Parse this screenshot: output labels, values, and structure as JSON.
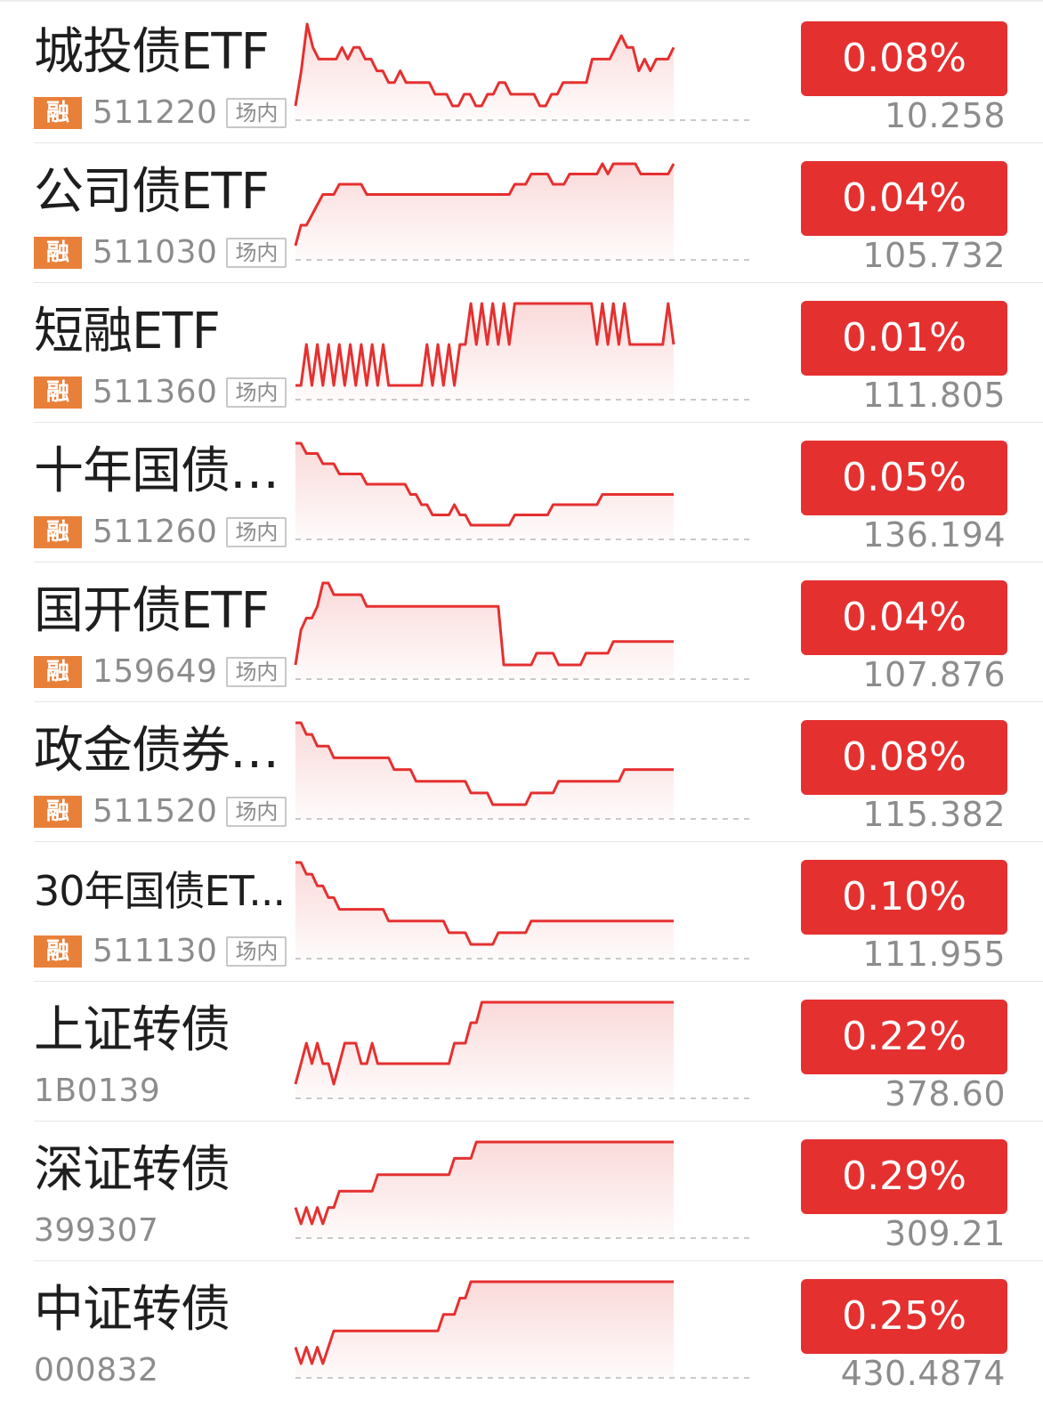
{
  "accent": "#e53030",
  "badge_color": "#e8803a",
  "rows": [
    {
      "name": "城投债ETF",
      "code": "511220",
      "badge": "融",
      "market_tag": "场内",
      "change": "0.08%",
      "price": "10.258",
      "spark": "2 5 9 7 6 6 6 6 7 6 7 7 6 6 5 5 4 4 5 4 4 4 4 4 3 3 3 2 2 3 3 2 2 3 3 4 4 3 3 3 3 3 2 2 3 3 4 4 4 4 4 6 6 6 6 7 8 7 7 5 6 5 6 6 6 7"
    },
    {
      "name": "公司债ETF",
      "code": "511030",
      "badge": "融",
      "market_tag": "场内",
      "change": "0.04%",
      "price": "105.732",
      "spark": "1 3 3 4 5 6 6 6 7 7 7 7 7 6 6 6 6 6 6 6 6 6 6 6 6 6 6 6 6 6 6 6 6 6 6 6 6 6 6 6 7 7 7 8 8 8 8 7 7 7 8 8 8 8 8 8 9 8 9 9 9 9 9 8 8 8 8 8 8 9"
    },
    {
      "name": "短融ETF",
      "code": "511360",
      "badge": "融",
      "market_tag": "场内",
      "change": "0.01%",
      "price": "111.805",
      "spark": "5 5 6 5 6 5 6 5 6 5 6 5 6 5 6 5 6 5 5 5 5 5 5 5 6 5 6 5 6 5 6 6 7 6 7 6 7 6 7 6 7 7 7 7 7 7 7 7 7 7 7 7 7 7 7 6 7 6 7 6 7 6 6 6 6 6 6 6 7 6"
    },
    {
      "name": "十年国债ETF",
      "code": "511260",
      "badge": "融",
      "market_tag": "场内",
      "change": "0.05%",
      "price": "136.194",
      "spark": "9 9 8 8 8 7 7 7 6 6 6 6 6 5 5 5 5 5 5 5 5 4 4 3 3 2 2 2 2 3 2 2 1 1 1 1 1 1 1 1 2 2 2 2 2 2 2 3 3 3 3 3 3 3 3 3 4 4 4 4 4 4 4 4 4 4 4 4 4 4"
    },
    {
      "name": "国开债ETF",
      "code": "159649",
      "badge": "融",
      "market_tag": "场内",
      "change": "0.04%",
      "price": "107.876",
      "spark": "2 5 6 6 7 9 9 8 8 8 8 8 8 7 7 7 7 7 7 7 7 7 7 7 7 7 7 7 7 7 7 7 7 7 7 7 7 7 2 2 2 2 2 2 3 3 3 3 2 2 2 2 2 3 3 3 3 3 4 4 4 4 4 4 4 4 4 4 4 4"
    },
    {
      "name": "政金债券ETF",
      "code": "511520",
      "badge": "融",
      "market_tag": "场内",
      "change": "0.08%",
      "price": "115.382",
      "spark": "9 9 8 8 7 7 7 6 6 6 6 6 6 6 6 6 6 6 5 5 5 5 4 4 4 4 4 4 4 4 4 4 3 3 3 3 2 2 2 2 2 2 2 3 3 3 3 3 4 4 4 4 4 4 4 4 4 4 4 4 5 5 5 5 5 5 5 5 5 5"
    },
    {
      "name": "30年国债ET...",
      "code": "511130",
      "badge": "融",
      "market_tag": "场内",
      "change": "0.10%",
      "price": "111.955",
      "spark": "9 9 8 8 7 7 6 6 5 5 5 5 5 5 5 5 5 4 4 4 4 4 4 4 4 4 4 4 3 3 3 3 2 2 2 2 2 3 3 3 3 3 3 4 4 4 4 4 4 4 4 4 4 4 4 4 4 4 4 4 4 4 4 4 4 4 4 4 4 4"
    },
    {
      "name": "上证转债",
      "code": "1B0139",
      "badge": "",
      "market_tag": "",
      "change": "0.22%",
      "price": "378.60",
      "spark": "1 2 3 2 3 2 2 1 2 3 3 3 2 2 3 2 2 2 2 2 2 2 2 2 2 2 2 2 2 3 3 3 4 4 5 5 5 5 5 5 5 5 5 5 5 5 5 5 5 5 5 5 5 5 5 5 5 5 5 5 5 5 5 5 5 5 5 5 5 5"
    },
    {
      "name": "深证转债",
      "code": "399307",
      "badge": "",
      "market_tag": "",
      "change": "0.29%",
      "price": "309.21",
      "spark": "1 0 1 0 1 0 1 1 2 2 2 2 2 2 2 3 3 3 3 3 3 3 3 3 3 3 3 3 3 4 4 4 4 5 5 5 5 5 5 5 5 5 5 5 5 5 5 5 5 5 5 5 5 5 5 5 5 5 5 5 5 5 5 5 5 5 5 5 5 5"
    },
    {
      "name": "中证转债",
      "code": "000832",
      "badge": "",
      "market_tag": "",
      "change": "0.25%",
      "price": "430.4874",
      "spark": "1 0 1 0 1 0 1 2 2 2 2 2 2 2 2 2 2 2 2 2 2 2 2 2 2 2 2 3 3 3 4 4 5 5 5 5 5 5 5 5 5 5 5 5 5 5 5 5 5 5 5 5 5 5 5 5 5 5 5 5 5 5 5 5 5 5 5 5 5 5"
    }
  ]
}
